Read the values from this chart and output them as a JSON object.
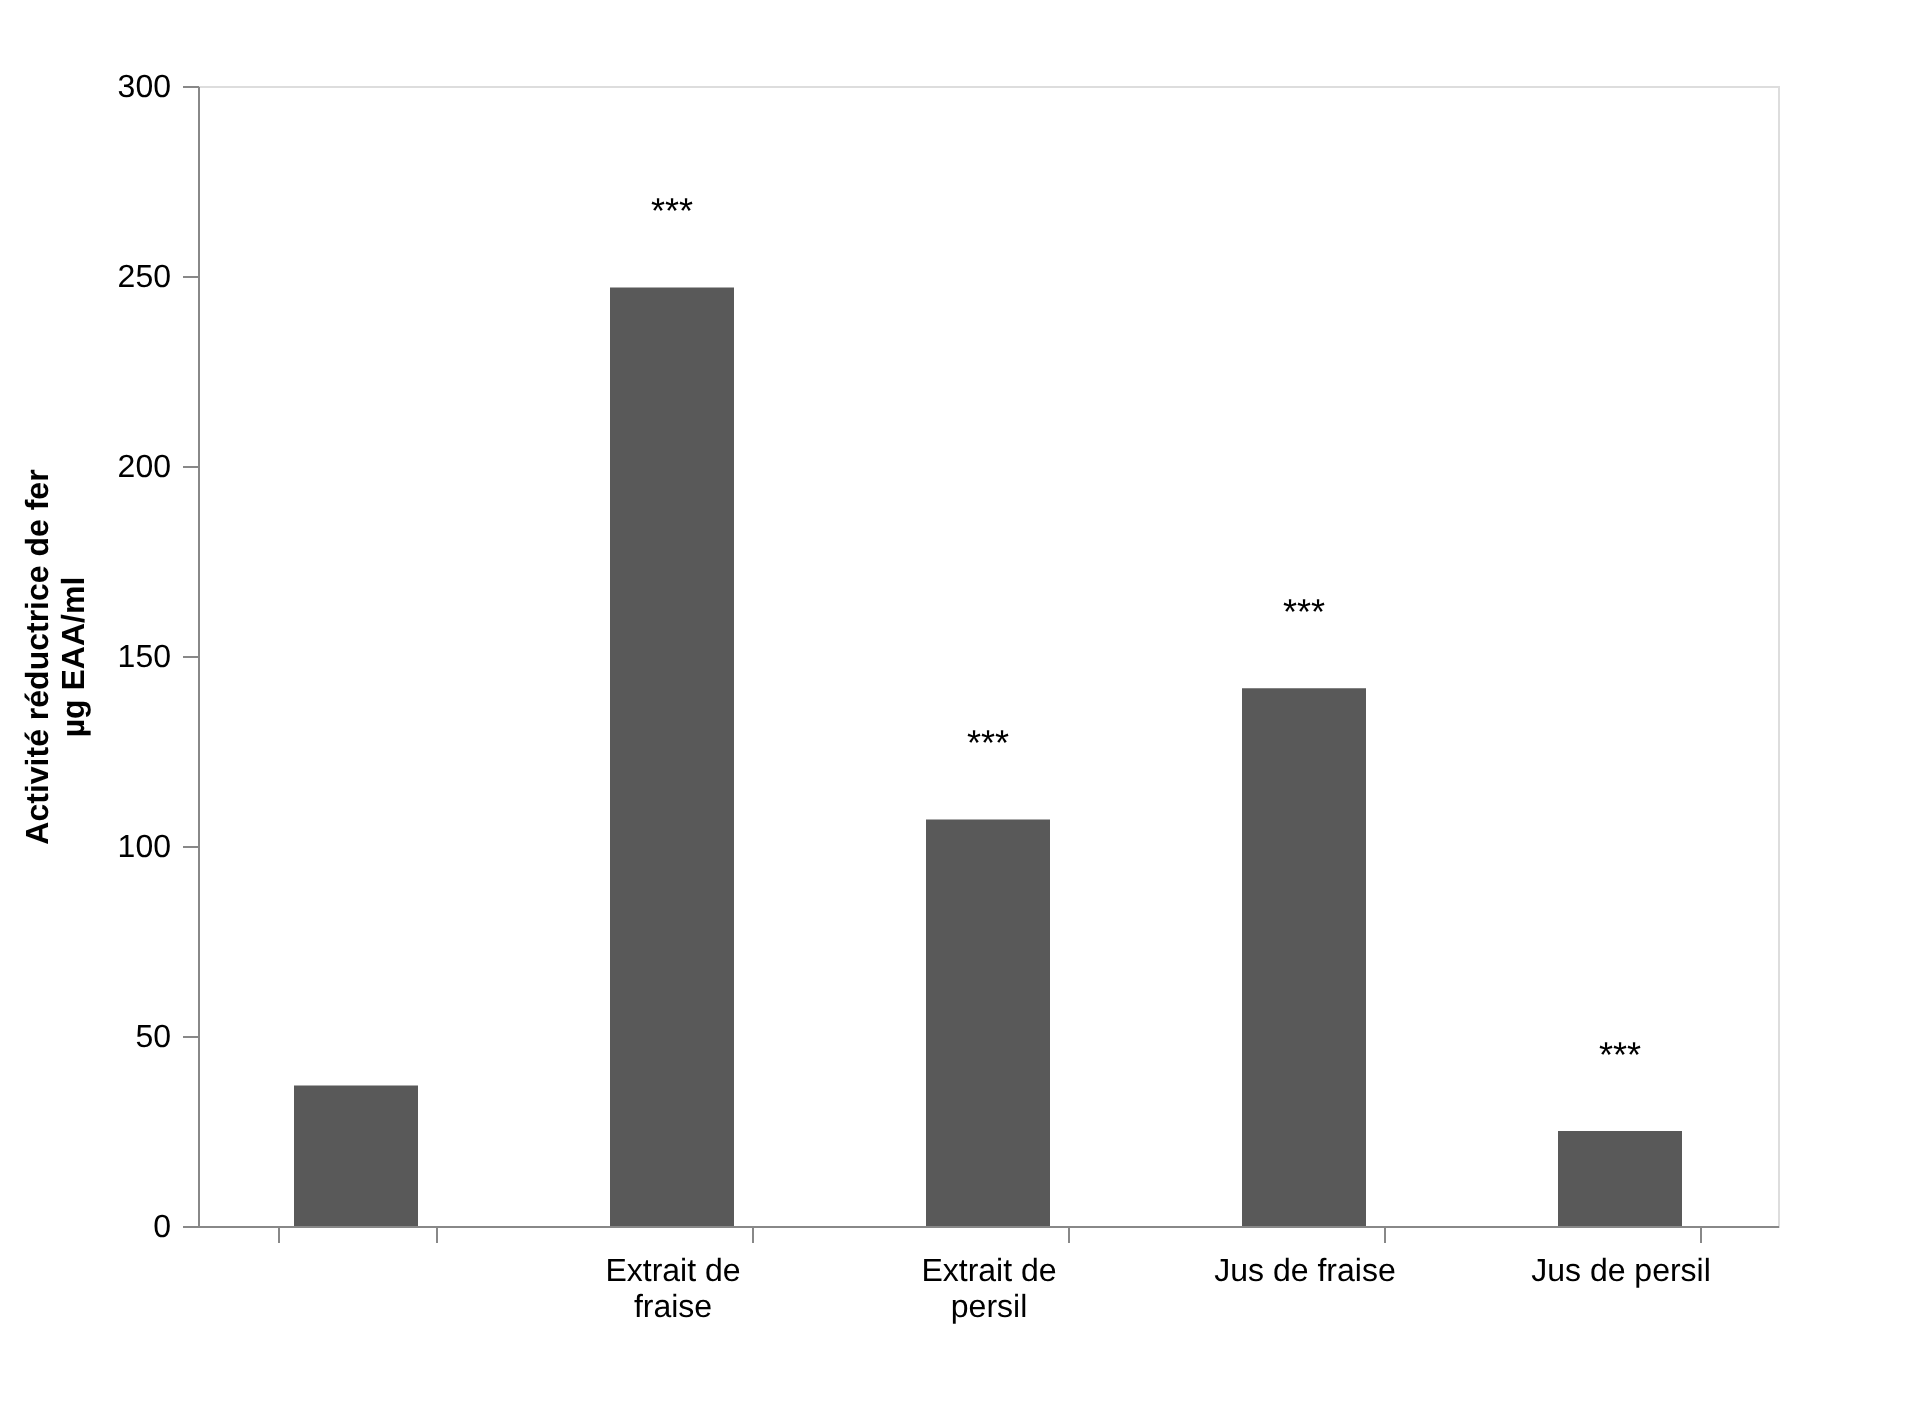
{
  "chart_data": {
    "type": "bar",
    "ylabel": "Activité réductrice de fer µg EAA/ml",
    "categories": [
      null,
      "Extrait de fraise",
      "Extrait de persil",
      "Jus de fraise",
      "Jus de persil"
    ],
    "values": [
      37,
      247,
      107,
      141.5,
      25
    ],
    "color": "#595959",
    "ylim": [
      0,
      300
    ],
    "yticks": [
      0,
      50,
      100,
      150,
      200,
      250,
      300
    ],
    "grid": false,
    "annotations": [
      "***",
      "***",
      "***",
      "***"
    ]
  }
}
